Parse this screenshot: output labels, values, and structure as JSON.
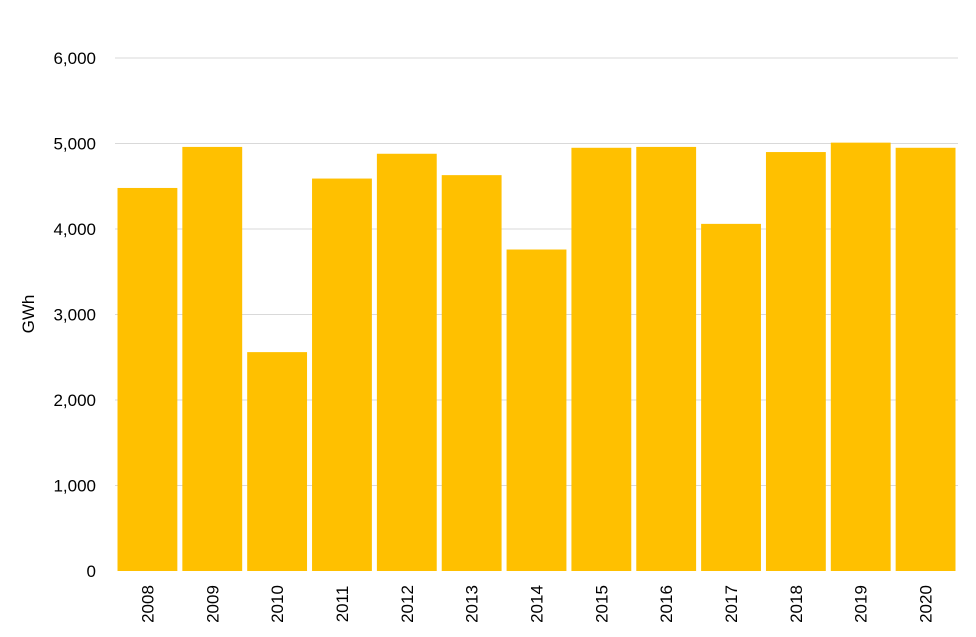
{
  "chart_data": {
    "type": "bar",
    "title": "",
    "xlabel": "",
    "ylabel": "GWh",
    "categories": [
      "2008",
      "2009",
      "2010",
      "2011",
      "2012",
      "2013",
      "2014",
      "2015",
      "2016",
      "2017",
      "2018",
      "2019",
      "2020"
    ],
    "values": [
      4480,
      4960,
      2560,
      4590,
      4880,
      4630,
      3760,
      4950,
      4960,
      4060,
      4900,
      5010,
      4950
    ],
    "ylim": [
      0,
      6000
    ],
    "yticks": [
      0,
      1000,
      2000,
      3000,
      4000,
      5000,
      6000
    ],
    "ytick_labels": [
      "0",
      "1,000",
      "2,000",
      "3,000",
      "4,000",
      "5,000",
      "6,000"
    ],
    "grid": true,
    "legend": "none",
    "bar_color": "#FFC000",
    "grid_color": "#D9D9D9"
  }
}
